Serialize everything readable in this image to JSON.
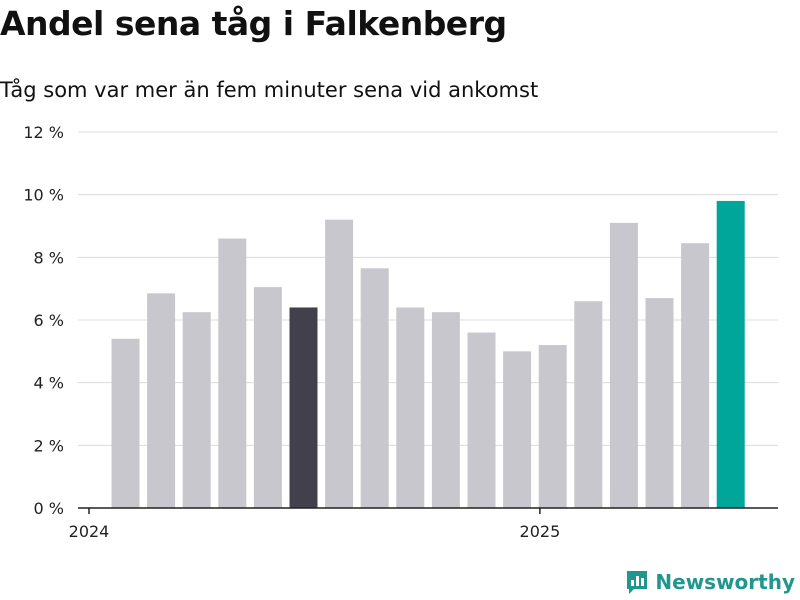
{
  "title": "Andel sena tåg i Falkenberg",
  "subtitle": "Tåg som var mer än fem minuter sena vid ankomst",
  "brand": "Newsworthy",
  "colors": {
    "bar_default": "#c8c7cd",
    "bar_highlight_dark": "#41404c",
    "bar_latest": "#00a69a",
    "grid": "#dcdcdc",
    "axis": "#222222",
    "brand": "#21968e"
  },
  "chart_data": {
    "type": "bar",
    "title": "Andel sena tåg i Falkenberg",
    "subtitle": "Tåg som var mer än fem minuter sena vid ankomst",
    "xlabel": "",
    "ylabel": "",
    "ylim": [
      0,
      12
    ],
    "yticks": [
      0,
      2,
      4,
      6,
      8,
      10,
      12
    ],
    "ytick_labels": [
      "0 %",
      "2 %",
      "4 %",
      "6 %",
      "8 %",
      "10 %",
      "12 %"
    ],
    "categories": [
      "2024-01",
      "2024-02",
      "2024-03",
      "2024-04",
      "2024-05",
      "2024-06",
      "2024-07",
      "2024-08",
      "2024-09",
      "2024-10",
      "2024-11",
      "2024-12",
      "2025-01",
      "2025-02",
      "2025-03",
      "2025-04",
      "2025-05",
      "2025-06"
    ],
    "x_tick_labels": [
      "2024",
      "2025"
    ],
    "x_tick_categories": [
      "2024-01",
      "2025-01"
    ],
    "values": [
      5.4,
      6.85,
      6.25,
      8.6,
      7.05,
      6.4,
      9.2,
      7.65,
      6.4,
      6.25,
      5.6,
      5.0,
      5.2,
      6.6,
      9.1,
      6.7,
      8.45,
      9.8
    ],
    "highlight": {
      "2024-06": "dark",
      "2025-06": "latest"
    },
    "grid": true,
    "legend": "none"
  }
}
